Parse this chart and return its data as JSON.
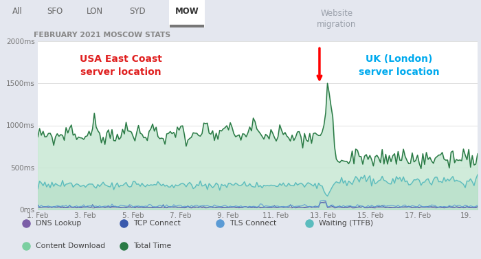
{
  "title": "FEBRUARY 2021 MOSCOW STATS",
  "bg_color": "#eef0f5",
  "chart_bg": "#ffffff",
  "grid_color": "#e0e0e0",
  "ylim": [
    0,
    2000
  ],
  "yticks": [
    0,
    500,
    1000,
    1500,
    2000
  ],
  "ytick_labels": [
    "0ms",
    "500ms",
    "1000ms",
    "1500ms",
    "2000ms"
  ],
  "xtick_labels": [
    "1. Feb",
    "3. Feb",
    "5. Feb",
    "7. Feb",
    "9. Feb",
    "11. Feb",
    "13. Feb",
    "15. Feb",
    "17. Feb",
    "19."
  ],
  "xtick_positions": [
    1,
    3,
    5,
    7,
    9,
    11,
    13,
    15,
    17,
    19
  ],
  "xlim": [
    1,
    19.5
  ],
  "migration_x": 12.85,
  "annotation_website_migration": "Website\nmigration",
  "annotation_usa": "USA East Coast\nserver location",
  "annotation_uk": "UK (London)\nserver location",
  "color_total_time": "#2a7a45",
  "color_waiting": "#5bbcbe",
  "color_fill_top": "#c5e8d5",
  "color_fill_bottom": "#d8f0e4",
  "color_dns": "#7b5ea7",
  "color_tcp": "#3a5aad",
  "color_tls": "#5b9bd5",
  "color_tab_bg": "#e4e7ef",
  "color_tab_active_bg": "#ffffff",
  "color_migration_text": "#9aa0aa",
  "color_usa_text": "#e02020",
  "color_uk_text": "#00aaee",
  "legend_items": [
    {
      "label": "DNS Lookup",
      "color": "#7b5ea7"
    },
    {
      "label": "TCP Connect",
      "color": "#3a5aad"
    },
    {
      "label": "TLS Connect",
      "color": "#5b9bd5"
    },
    {
      "label": "Waiting (TTFB)",
      "color": "#5bbcbe"
    },
    {
      "label": "Content Download",
      "color": "#7bcfa0"
    },
    {
      "label": "Total Time",
      "color": "#2a7a45"
    }
  ],
  "tab_items": [
    "All",
    "SFO",
    "LON",
    "SYD",
    "MOW"
  ],
  "tab_active_idx": 4
}
